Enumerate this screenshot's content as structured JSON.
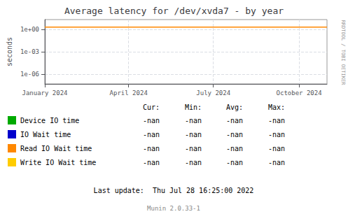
{
  "chart_data": {
    "type": "line",
    "title": "Average latency for /dev/xvda7 - by year",
    "ylabel": "seconds",
    "log": "y",
    "grid": true,
    "legend": "bottom",
    "xlim": [
      1672531200,
      1698710400
    ],
    "xticks": [
      {
        "value": 1672531200,
        "label": "January 2024"
      },
      {
        "value": 1680307200,
        "label": "April 2024"
      },
      {
        "value": 1688169600,
        "label": "July 2024"
      },
      {
        "value": 1696118400,
        "label": "October 2024"
      }
    ],
    "ylim": [
      5e-08,
      20
    ],
    "yticks": [
      {
        "value": 1e-06,
        "label": "1e-06"
      },
      {
        "value": 0.001,
        "label": "1e-03"
      },
      {
        "value": 1,
        "label": "1e+00"
      }
    ],
    "x": [],
    "series": [
      {
        "name": "Device IO time",
        "color": "#00aa00",
        "values": [],
        "stats": [
          "-nan",
          "-nan",
          "-nan",
          "-nan"
        ]
      },
      {
        "name": "IO Wait time",
        "color": "#0000cc",
        "values": [],
        "stats": [
          "-nan",
          "-nan",
          "-nan",
          "-nan"
        ]
      },
      {
        "name": "Read IO Wait time",
        "color": "#ff8800",
        "values": [],
        "stats": [
          "-nan",
          "-nan",
          "-nan",
          "-nan"
        ]
      },
      {
        "name": "Write IO Wait time",
        "color": "#ffcc00",
        "values": [],
        "stats": [
          "-nan",
          "-nan",
          "-nan",
          "-nan"
        ]
      }
    ],
    "stat_labels": [
      "Cur:",
      "Min:",
      "Avg:",
      "Max:"
    ],
    "hlines": [
      {
        "y": 2.0,
        "color": "#ff8800"
      }
    ],
    "annotations": [
      "Last update:  Thu Jul 28 16:25:00 2022",
      "Munin 2.0.33-1",
      "RRDTOOL / TOBI OETIKER"
    ]
  }
}
